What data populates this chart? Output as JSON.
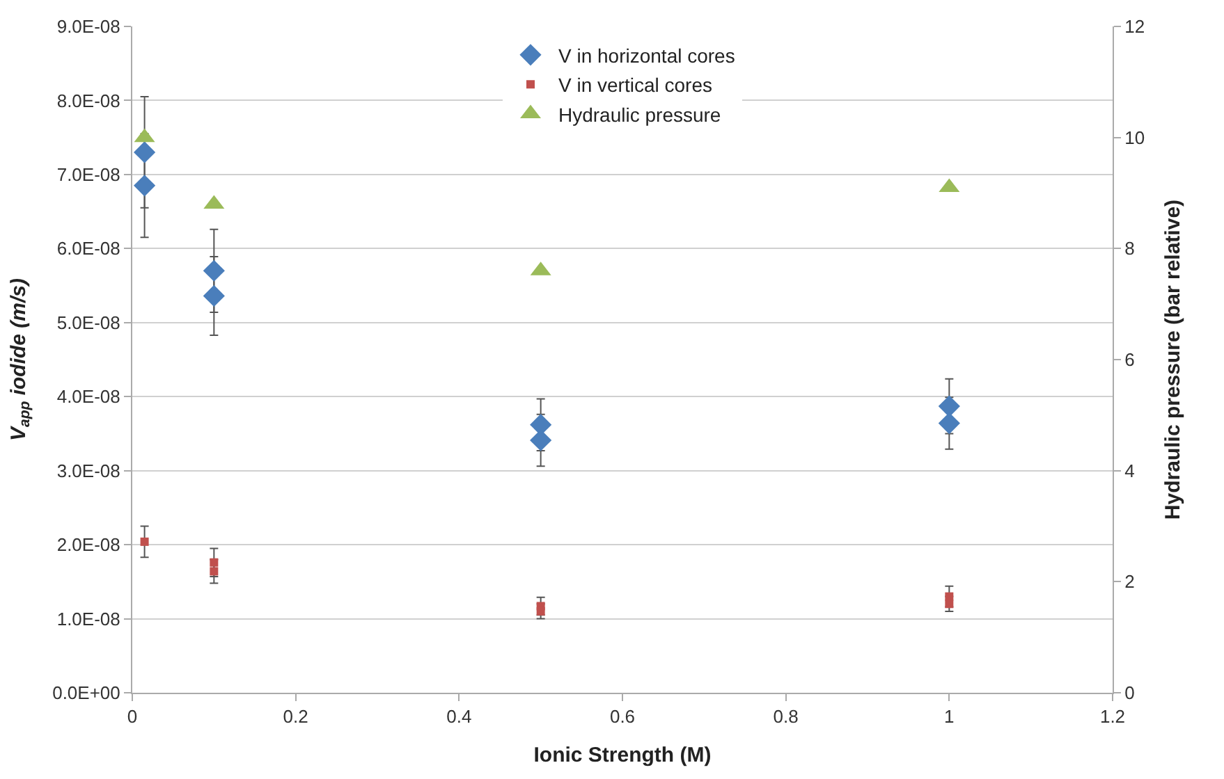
{
  "chart_data": {
    "type": "scatter",
    "xlabel": "Ionic Strength (M)",
    "ylabel": "V$_{app}$ iodide (m/s)",
    "y2label": "Hydraulic pressure (bar relative)",
    "xlim": [
      0,
      1.2
    ],
    "xticks": [
      0,
      0.2,
      0.4,
      0.6,
      0.8,
      1,
      1.2
    ],
    "ylim": [
      0,
      9e-08
    ],
    "yticks": [
      {
        "value": 0,
        "label": "0.0E+00"
      },
      {
        "value": 1e-08,
        "label": "1.0E-08"
      },
      {
        "value": 2e-08,
        "label": "2.0E-08"
      },
      {
        "value": 3e-08,
        "label": "3.0E-08"
      },
      {
        "value": 4e-08,
        "label": "4.0E-08"
      },
      {
        "value": 5e-08,
        "label": "5.0E-08"
      },
      {
        "value": 6e-08,
        "label": "6.0E-08"
      },
      {
        "value": 7e-08,
        "label": "7.0E-08"
      },
      {
        "value": 8e-08,
        "label": "8.0E-08"
      },
      {
        "value": 9e-08,
        "label": "9.0E-08"
      }
    ],
    "y2lim": [
      0,
      12
    ],
    "y2ticks": [
      0,
      2,
      4,
      6,
      8,
      10,
      12
    ],
    "grid": "y",
    "legend": "top",
    "series": [
      {
        "name": "V in horizontal cores",
        "color": "#4a7ebb",
        "marker": "diamond",
        "x": [
          0.015,
          0.015,
          0.1,
          0.1,
          0.5,
          0.5,
          1,
          1
        ],
        "values": [
          7.3e-08,
          6.85e-08,
          5.7e-08,
          5.36e-08,
          3.62e-08,
          3.41e-08,
          3.87e-08,
          3.64e-08
        ],
        "errors": [
          7.5e-09,
          7e-09,
          5.6e-09,
          5.3e-09,
          3.5e-09,
          3.5e-09,
          3.7e-09,
          3.5e-09
        ]
      },
      {
        "name": "V in vertical cores",
        "color": "#c0504d",
        "marker": "square",
        "x": [
          0.015,
          0.1,
          0.1,
          0.5,
          0.5,
          1,
          1
        ],
        "values": [
          2.04e-08,
          1.76e-08,
          1.64e-08,
          1.17e-08,
          1.1e-08,
          1.3e-08,
          1.2e-08
        ],
        "errors": [
          2.1e-09,
          1.9e-09,
          1.6e-09,
          1.2e-09,
          1e-09,
          1.4e-09,
          1e-09
        ]
      },
      {
        "name": "Hydraulic pressure",
        "color": "#9bbb59",
        "marker": "triangle",
        "axis": "y2",
        "x": [
          0.015,
          0.1,
          0.5,
          1
        ],
        "values": [
          10.0,
          8.8,
          7.6,
          9.1
        ]
      }
    ]
  }
}
